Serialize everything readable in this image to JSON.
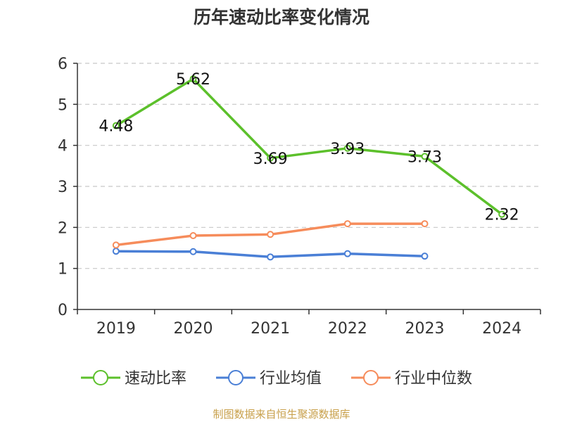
{
  "chart_data": {
    "type": "line",
    "title": "历年速动比率变化情况",
    "categories": [
      "2019",
      "2020",
      "2021",
      "2022",
      "2023",
      "2024"
    ],
    "ylim": [
      0,
      6
    ],
    "yticks": [
      "0",
      "1",
      "2",
      "3",
      "4",
      "5",
      "6"
    ],
    "grid": true,
    "legend_position": "bottom",
    "series": [
      {
        "name": "速动比率",
        "color": "#5cc02b",
        "values": [
          4.48,
          5.62,
          3.69,
          3.93,
          3.73,
          2.32
        ],
        "labels": [
          "4.48",
          "5.62",
          "3.69",
          "3.93",
          "3.73",
          "2.32"
        ]
      },
      {
        "name": "行业均值",
        "color": "#4a7fd6",
        "values": [
          1.42,
          1.41,
          1.28,
          1.36,
          1.3,
          null
        ]
      },
      {
        "name": "行业中位数",
        "color": "#f68c5b",
        "values": [
          1.57,
          1.8,
          1.83,
          2.09,
          2.09,
          null
        ]
      }
    ],
    "source": "制图数据来自恒生聚源数据库"
  }
}
